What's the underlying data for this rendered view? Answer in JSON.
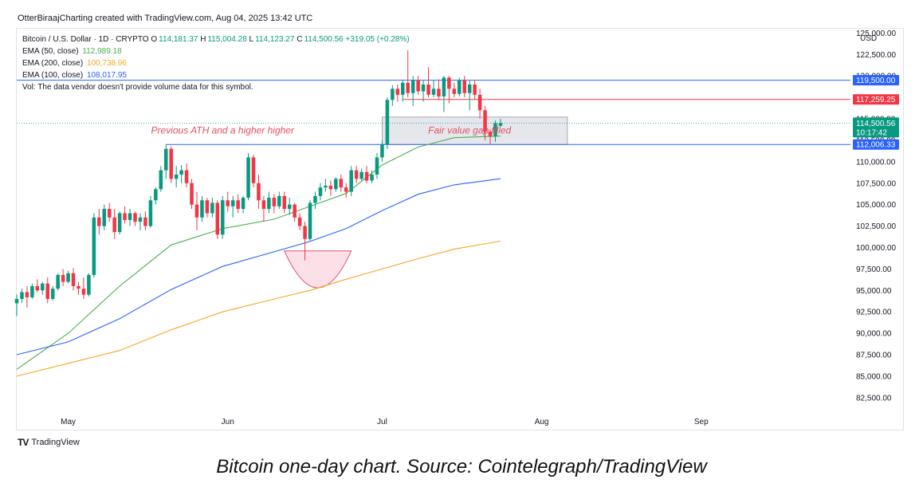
{
  "header": {
    "text": "OtterBiraajCharting created with TradingView.com, Aug 04, 2025 13:42 UTC"
  },
  "legend": {
    "symbol": "Bitcoin / U.S. Dollar · 1D · CRYPTO",
    "ohlc": [
      {
        "label": "O",
        "value": "114,181.37"
      },
      {
        "label": "H",
        "value": "115,004.28"
      },
      {
        "label": "L",
        "value": "114,123.27"
      },
      {
        "label": "C",
        "value": "114,500.56"
      }
    ],
    "change": "+319.05 (+0.28%)",
    "indicators": [
      {
        "label": "EMA (50, close)",
        "value": "112,989.18",
        "color": "#4caf50"
      },
      {
        "label": "EMA (200, close)",
        "value": "100,738.96",
        "color": "#f5a623"
      },
      {
        "label": "EMA (100, close)",
        "value": "108,017.95",
        "color": "#2962ff"
      }
    ],
    "vol_note": "Vol: The data vendor doesn't provide volume data for this symbol."
  },
  "currency": "USD",
  "branding": {
    "logo_text": "TradingView",
    "logo_mark": "TV"
  },
  "caption": "Bitcoin one-day chart. Source: Cointelegraph/TradingView",
  "colors": {
    "up": "#089981",
    "down": "#f23645",
    "ema50": "#4caf50",
    "ema100": "#2962ff",
    "ema200": "#f5a623",
    "annotation": "#e05060"
  },
  "chart_data": {
    "type": "candlestick",
    "title": "Bitcoin / U.S. Dollar · 1D · CRYPTO",
    "ylim": [
      81000,
      125500
    ],
    "y_ticks": [
      "82,500.00",
      "85,000.00",
      "87,500.00",
      "90,000.00",
      "92,500.00",
      "95,000.00",
      "97,500.00",
      "100,000.00",
      "102,500.00",
      "105,000.00",
      "107,500.00",
      "110,000.00",
      "112,500.00",
      "115,000.00",
      "117,500.00",
      "120,000.00",
      "122,500.00",
      "125,000.00"
    ],
    "x_ticks": [
      {
        "label": "May",
        "day": 10
      },
      {
        "label": "Jun",
        "day": 41
      },
      {
        "label": "Jul",
        "day": 71
      },
      {
        "label": "Aug",
        "day": 102
      },
      {
        "label": "Sep",
        "day": 133
      }
    ],
    "x_range": [
      0,
      162
    ],
    "candles": [
      [
        0,
        93500,
        94500,
        92000,
        94000
      ],
      [
        1,
        94000,
        95200,
        93500,
        94800
      ],
      [
        2,
        94800,
        95500,
        93000,
        94200
      ],
      [
        3,
        94200,
        95800,
        94000,
        95500
      ],
      [
        4,
        95500,
        96300,
        94800,
        95000
      ],
      [
        5,
        95000,
        96000,
        94500,
        95800
      ],
      [
        6,
        95800,
        96500,
        93500,
        94000
      ],
      [
        7,
        94000,
        95500,
        93800,
        95200
      ],
      [
        8,
        95200,
        97000,
        95000,
        96800
      ],
      [
        9,
        96800,
        97500,
        95500,
        96000
      ],
      [
        10,
        96000,
        97300,
        95800,
        97000
      ],
      [
        11,
        97000,
        97600,
        95000,
        95500
      ],
      [
        12,
        95500,
        96000,
        94500,
        95200
      ],
      [
        13,
        95200,
        96500,
        94000,
        94500
      ],
      [
        14,
        94500,
        97000,
        94300,
        96800
      ],
      [
        15,
        96800,
        104000,
        96500,
        103500
      ],
      [
        16,
        103500,
        104500,
        101500,
        102500
      ],
      [
        17,
        102500,
        105000,
        102000,
        104500
      ],
      [
        18,
        104500,
        105200,
        103000,
        103500
      ],
      [
        19,
        103500,
        104500,
        101000,
        101800
      ],
      [
        20,
        101800,
        104200,
        101500,
        104000
      ],
      [
        21,
        104000,
        104800,
        102800,
        103200
      ],
      [
        22,
        103200,
        104500,
        102500,
        104000
      ],
      [
        23,
        104000,
        104200,
        102500,
        103000
      ],
      [
        24,
        103000,
        104000,
        102000,
        103500
      ],
      [
        25,
        103500,
        104200,
        102000,
        102500
      ],
      [
        26,
        102500,
        106000,
        102300,
        105500
      ],
      [
        27,
        105500,
        107000,
        105000,
        106800
      ],
      [
        28,
        106800,
        109500,
        106500,
        109000
      ],
      [
        29,
        109000,
        112000,
        108000,
        111500
      ],
      [
        30,
        111500,
        111800,
        107500,
        108000
      ],
      [
        31,
        108000,
        109500,
        107000,
        108500
      ],
      [
        32,
        108500,
        109600,
        107500,
        109000
      ],
      [
        33,
        109000,
        109800,
        107000,
        107500
      ],
      [
        34,
        107500,
        108000,
        104500,
        105000
      ],
      [
        35,
        105000,
        106500,
        102000,
        103500
      ],
      [
        36,
        103500,
        106000,
        103000,
        105500
      ],
      [
        37,
        105500,
        105800,
        103500,
        104000
      ],
      [
        38,
        104000,
        105800,
        103500,
        105200
      ],
      [
        39,
        105200,
        105500,
        101000,
        101500
      ],
      [
        40,
        101500,
        106000,
        101000,
        105500
      ],
      [
        41,
        105500,
        106500,
        104200,
        104800
      ],
      [
        42,
        104800,
        106000,
        103500,
        105500
      ],
      [
        43,
        105500,
        106200,
        104000,
        104500
      ],
      [
        44,
        104500,
        106000,
        104000,
        105800
      ],
      [
        45,
        105800,
        111000,
        105500,
        110500
      ],
      [
        46,
        110500,
        110800,
        107000,
        107500
      ],
      [
        47,
        107500,
        108500,
        104500,
        105500
      ],
      [
        48,
        105500,
        106000,
        103000,
        104500
      ],
      [
        49,
        104500,
        106500,
        104000,
        105800
      ],
      [
        50,
        105800,
        106200,
        104000,
        104800
      ],
      [
        51,
        104800,
        106500,
        104500,
        106000
      ],
      [
        52,
        106000,
        106500,
        104000,
        104500
      ],
      [
        53,
        104500,
        105800,
        103800,
        105000
      ],
      [
        54,
        105000,
        105200,
        103000,
        103500
      ],
      [
        55,
        103500,
        104000,
        102000,
        102500
      ],
      [
        56,
        102500,
        103000,
        98500,
        101000
      ],
      [
        57,
        101000,
        105500,
        100800,
        105200
      ],
      [
        58,
        105200,
        106500,
        104500,
        106000
      ],
      [
        59,
        106000,
        107500,
        105500,
        107000
      ],
      [
        60,
        107000,
        108000,
        106500,
        107200
      ],
      [
        61,
        107200,
        107800,
        106000,
        106800
      ],
      [
        62,
        106800,
        108200,
        106500,
        108000
      ],
      [
        63,
        108000,
        108500,
        106500,
        107000
      ],
      [
        64,
        107000,
        107500,
        105800,
        106500
      ],
      [
        65,
        106500,
        109500,
        106000,
        109000
      ],
      [
        66,
        109000,
        109500,
        107500,
        108000
      ],
      [
        67,
        108000,
        109200,
        107800,
        108800
      ],
      [
        68,
        108800,
        109500,
        107500,
        107800
      ],
      [
        69,
        107800,
        109000,
        107500,
        108500
      ],
      [
        70,
        108500,
        111000,
        108000,
        110500
      ],
      [
        71,
        110500,
        112500,
        110000,
        112000
      ],
      [
        72,
        112000,
        117500,
        111500,
        117200
      ],
      [
        73,
        117200,
        118900,
        116500,
        118500
      ],
      [
        74,
        118500,
        119000,
        117000,
        117800
      ],
      [
        75,
        117800,
        119500,
        117000,
        119200
      ],
      [
        76,
        119200,
        123000,
        117500,
        118000
      ],
      [
        77,
        118000,
        120000,
        116500,
        119500
      ],
      [
        78,
        119500,
        120000,
        117800,
        118200
      ],
      [
        79,
        118200,
        119500,
        117000,
        119000
      ],
      [
        80,
        119000,
        121000,
        117500,
        117800
      ],
      [
        81,
        117800,
        119500,
        117500,
        118500
      ],
      [
        82,
        118500,
        119600,
        117200,
        117600
      ],
      [
        83,
        117600,
        120000,
        115800,
        119800
      ],
      [
        84,
        119800,
        120000,
        116800,
        118500
      ],
      [
        85,
        118500,
        119200,
        117500,
        117900
      ],
      [
        86,
        117900,
        119800,
        117600,
        119500
      ],
      [
        87,
        119500,
        120000,
        117500,
        118000
      ],
      [
        88,
        118000,
        119500,
        116000,
        119000
      ],
      [
        89,
        119000,
        119500,
        117200,
        117800
      ],
      [
        90,
        117800,
        118500,
        115000,
        116000
      ],
      [
        91,
        116000,
        116500,
        112500,
        113500
      ],
      [
        92,
        113500,
        113800,
        112000,
        113000
      ],
      [
        93,
        113000,
        114800,
        112300,
        114500
      ],
      [
        94,
        114181.37,
        115004.28,
        114123.27,
        114500.56
      ]
    ],
    "series": [
      {
        "name": "EMA (50, close)",
        "x": [
          0,
          10,
          20,
          30,
          40,
          50,
          57,
          64,
          71,
          78,
          85,
          94
        ],
        "values": [
          85800,
          90000,
          95500,
          100300,
          102200,
          103300,
          104800,
          106300,
          109600,
          111700,
          112800,
          112989.18
        ]
      },
      {
        "name": "EMA (100, close)",
        "x": [
          0,
          10,
          20,
          30,
          40,
          50,
          57,
          64,
          71,
          78,
          85,
          94
        ],
        "values": [
          87500,
          89000,
          91700,
          95100,
          97800,
          99500,
          100700,
          102200,
          104300,
          106200,
          107300,
          108017.95
        ]
      },
      {
        "name": "EMA (200, close)",
        "x": [
          0,
          10,
          20,
          30,
          40,
          50,
          57,
          64,
          71,
          78,
          85,
          94
        ],
        "values": [
          85000,
          86500,
          88000,
          90400,
          92500,
          94000,
          95000,
          96300,
          97500,
          98700,
          99800,
          100738.96
        ]
      }
    ],
    "hlines": [
      {
        "value": 119500,
        "label": "119,500.00",
        "color": "#2962ff",
        "x_from": 0
      },
      {
        "value": 117259.25,
        "label": "117,259.25",
        "color": "#f23645",
        "x_from": 75
      },
      {
        "value": 112006.33,
        "label": "112,006.33",
        "color": "#2962ff",
        "x_from": 29
      }
    ],
    "last_price": {
      "value": 114500.56,
      "label": "114,500.56",
      "countdown": "10:17:42"
    },
    "fvg_box": {
      "x0": 71,
      "x1": 107,
      "y0": 112000,
      "y1": 115200
    },
    "annotations": [
      {
        "text": "Previous ATH and a higher higher",
        "x": 40,
        "y": 113300
      },
      {
        "text": "Fair value gap filled",
        "x": 88,
        "y": 113300
      }
    ],
    "cup": {
      "x0": 52,
      "x1": 65,
      "top": 99600,
      "bottom": 95300
    }
  }
}
